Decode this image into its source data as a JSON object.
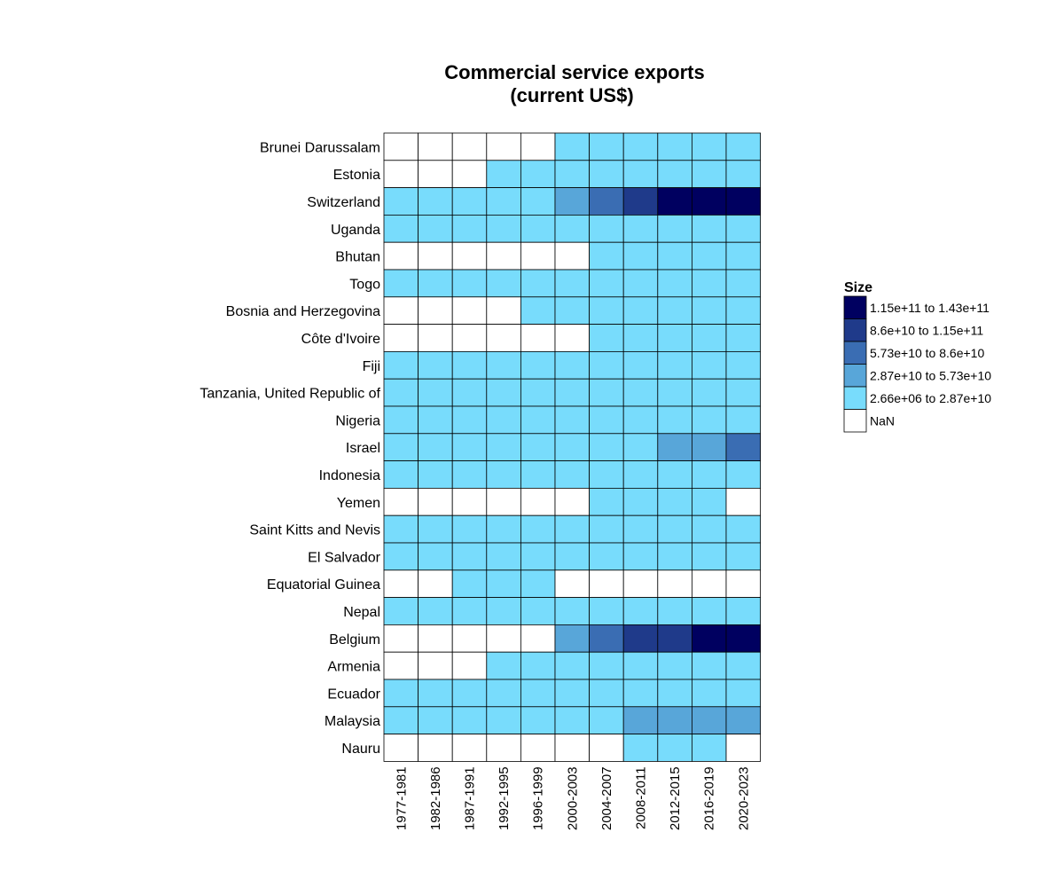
{
  "chart_data": {
    "type": "heatmap",
    "title": [
      "Commercial service exports",
      "(current US$)"
    ],
    "x_categories": [
      "1977-1981",
      "1982-1986",
      "1987-1991",
      "1992-1995",
      "1996-1999",
      "2000-2003",
      "2004-2007",
      "2008-2011",
      "2012-2015",
      "2016-2019",
      "2020-2023"
    ],
    "y_categories": [
      "Brunei Darussalam",
      "Estonia",
      "Switzerland",
      "Uganda",
      "Bhutan",
      "Togo",
      "Bosnia and Herzegovina",
      "Côte d'Ivoire",
      "Fiji",
      "Tanzania, United Republic of",
      "Nigeria",
      "Israel",
      "Indonesia",
      "Yemen",
      "Saint Kitts and Nevis",
      "El Salvador",
      "Equatorial Guinea",
      "Nepal",
      "Belgium",
      "Armenia",
      "Ecuador",
      "Malaysia",
      "Nauru"
    ],
    "bin_values": [
      [
        -1,
        -1,
        -1,
        -1,
        -1,
        0,
        0,
        0,
        0,
        0,
        0
      ],
      [
        -1,
        -1,
        -1,
        0,
        0,
        0,
        0,
        0,
        0,
        0,
        0
      ],
      [
        0,
        0,
        0,
        0,
        0,
        1,
        2,
        3,
        4,
        4,
        4
      ],
      [
        0,
        0,
        0,
        0,
        0,
        0,
        0,
        0,
        0,
        0,
        0
      ],
      [
        -1,
        -1,
        -1,
        -1,
        -1,
        -1,
        0,
        0,
        0,
        0,
        0
      ],
      [
        0,
        0,
        0,
        0,
        0,
        0,
        0,
        0,
        0,
        0,
        0
      ],
      [
        -1,
        -1,
        -1,
        -1,
        0,
        0,
        0,
        0,
        0,
        0,
        0
      ],
      [
        -1,
        -1,
        -1,
        -1,
        -1,
        -1,
        0,
        0,
        0,
        0,
        0
      ],
      [
        0,
        0,
        0,
        0,
        0,
        0,
        0,
        0,
        0,
        0,
        0
      ],
      [
        0,
        0,
        0,
        0,
        0,
        0,
        0,
        0,
        0,
        0,
        0
      ],
      [
        0,
        0,
        0,
        0,
        0,
        0,
        0,
        0,
        0,
        0,
        0
      ],
      [
        0,
        0,
        0,
        0,
        0,
        0,
        0,
        0,
        1,
        1,
        2
      ],
      [
        0,
        0,
        0,
        0,
        0,
        0,
        0,
        0,
        0,
        0,
        0
      ],
      [
        -1,
        -1,
        -1,
        -1,
        -1,
        -1,
        0,
        0,
        0,
        0,
        -1
      ],
      [
        0,
        0,
        0,
        0,
        0,
        0,
        0,
        0,
        0,
        0,
        0
      ],
      [
        0,
        0,
        0,
        0,
        0,
        0,
        0,
        0,
        0,
        0,
        0
      ],
      [
        -1,
        -1,
        0,
        0,
        0,
        -1,
        -1,
        -1,
        -1,
        -1,
        -1
      ],
      [
        0,
        0,
        0,
        0,
        0,
        0,
        0,
        0,
        0,
        0,
        0
      ],
      [
        -1,
        -1,
        -1,
        -1,
        -1,
        1,
        2,
        3,
        3,
        4,
        4
      ],
      [
        -1,
        -1,
        -1,
        0,
        0,
        0,
        0,
        0,
        0,
        0,
        0
      ],
      [
        0,
        0,
        0,
        0,
        0,
        0,
        0,
        0,
        0,
        0,
        0
      ],
      [
        0,
        0,
        0,
        0,
        0,
        0,
        0,
        1,
        1,
        1,
        1
      ],
      [
        -1,
        -1,
        -1,
        -1,
        -1,
        -1,
        -1,
        0,
        0,
        0,
        -1
      ]
    ],
    "legend": {
      "title": "Size",
      "bins": [
        {
          "label": "1.15e+11 to 1.43e+11",
          "color": "#000060"
        },
        {
          "label": "8.6e+10 to 1.15e+11",
          "color": "#1f3a8a"
        },
        {
          "label": "5.73e+10 to 8.6e+10",
          "color": "#3a6db3"
        },
        {
          "label": "2.87e+10 to 5.73e+10",
          "color": "#58a6d9"
        },
        {
          "label": "2.66e+06 to 2.87e+10",
          "color": "#78dcfc"
        },
        {
          "label": "NaN",
          "color": "#ffffff"
        }
      ]
    },
    "bin_colors": [
      "#78dcfc",
      "#58a6d9",
      "#3a6db3",
      "#1f3a8a",
      "#000060"
    ],
    "nan_color": "#ffffff",
    "grid": true
  }
}
